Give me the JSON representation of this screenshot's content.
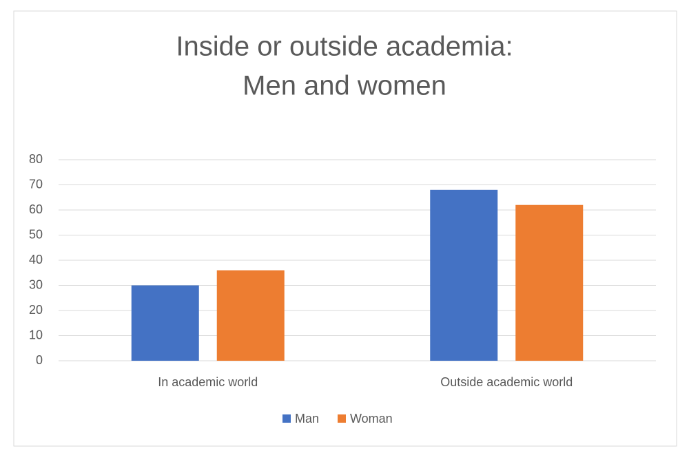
{
  "chart_data": {
    "type": "bar",
    "title": [
      "Inside or outside academia:",
      "Men and women"
    ],
    "categories": [
      "In academic world",
      "Outside academic world"
    ],
    "series": [
      {
        "name": "Man",
        "color": "#4472c4",
        "values": [
          30,
          68
        ]
      },
      {
        "name": "Woman",
        "color": "#ed7d31",
        "values": [
          36,
          62
        ]
      }
    ],
    "ylim": [
      0,
      80
    ],
    "yticks": [
      0,
      10,
      20,
      30,
      40,
      50,
      60,
      70,
      80
    ],
    "grid": true,
    "legend": "bottom"
  }
}
